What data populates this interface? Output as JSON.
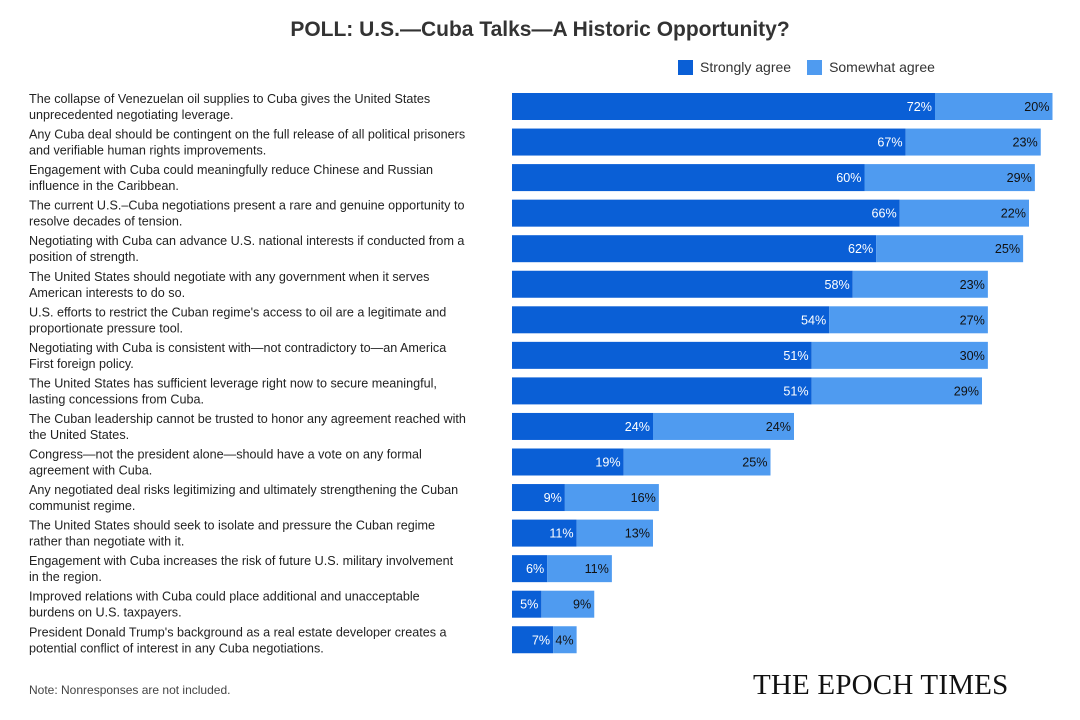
{
  "chart_data": {
    "type": "bar",
    "stacked": true,
    "orientation": "horizontal",
    "title": "POLL: U.S.—Cuba Talks—A Historic Opportunity?",
    "legend_position": "top-right",
    "xlim": [
      0,
      100
    ],
    "grid": false,
    "series": [
      {
        "name": "Strongly agree",
        "color": "#0a5fd6",
        "values": [
          72,
          67,
          60,
          66,
          62,
          58,
          54,
          51,
          51,
          24,
          19,
          9,
          11,
          6,
          5,
          7
        ]
      },
      {
        "name": "Somewhat agree",
        "color": "#4f9bf0",
        "values": [
          20,
          23,
          29,
          22,
          25,
          23,
          27,
          30,
          29,
          24,
          25,
          16,
          13,
          11,
          9,
          4
        ]
      }
    ],
    "categories": [
      [
        "The collapse of Venezuelan oil supplies to Cuba gives the United States",
        "unprecedented negotiating leverage."
      ],
      [
        "Any Cuba deal should be contingent on the full release of all political prisoners",
        "and verifiable human rights improvements."
      ],
      [
        "Engagement with Cuba could meaningfully reduce Chinese and Russian",
        "influence in the Caribbean."
      ],
      [
        "The current U.S.–Cuba negotiations present a rare and genuine opportunity to",
        "resolve decades of tension."
      ],
      [
        "Negotiating with Cuba can advance U.S. national interests if conducted from a",
        "position of strength."
      ],
      [
        "The United States should negotiate with any government when it serves",
        "American interests to do so."
      ],
      [
        "U.S. efforts to restrict the Cuban regime's access to oil are a legitimate and",
        "proportionate pressure tool."
      ],
      [
        "Negotiating with Cuba is consistent with—not contradictory to—an America",
        "First foreign policy."
      ],
      [
        "The United States has sufficient leverage right now to secure meaningful,",
        "lasting concessions from Cuba."
      ],
      [
        "The Cuban leadership cannot be trusted to honor any agreement reached with",
        "the United States."
      ],
      [
        "Congress—not the president alone—should have a vote on any formal",
        "agreement with Cuba."
      ],
      [
        "Any negotiated deal risks legitimizing and ultimately strengthening the Cuban",
        "communist regime."
      ],
      [
        "The United States should seek to isolate and pressure the Cuban regime",
        "rather than negotiate with it."
      ],
      [
        "Engagement with Cuba increases the risk of future U.S. military involvement",
        "in the region."
      ],
      [
        "Improved relations with Cuba could place additional and unacceptable",
        "burdens on U.S. taxpayers."
      ],
      [
        "President Donald Trump's background as a real estate developer creates a",
        "potential conflict of interest in any Cuba negotiations."
      ]
    ],
    "value_suffix": "%"
  },
  "note": "Note: Nonresponses are not included.",
  "logo": "THE EPOCH TIMES"
}
